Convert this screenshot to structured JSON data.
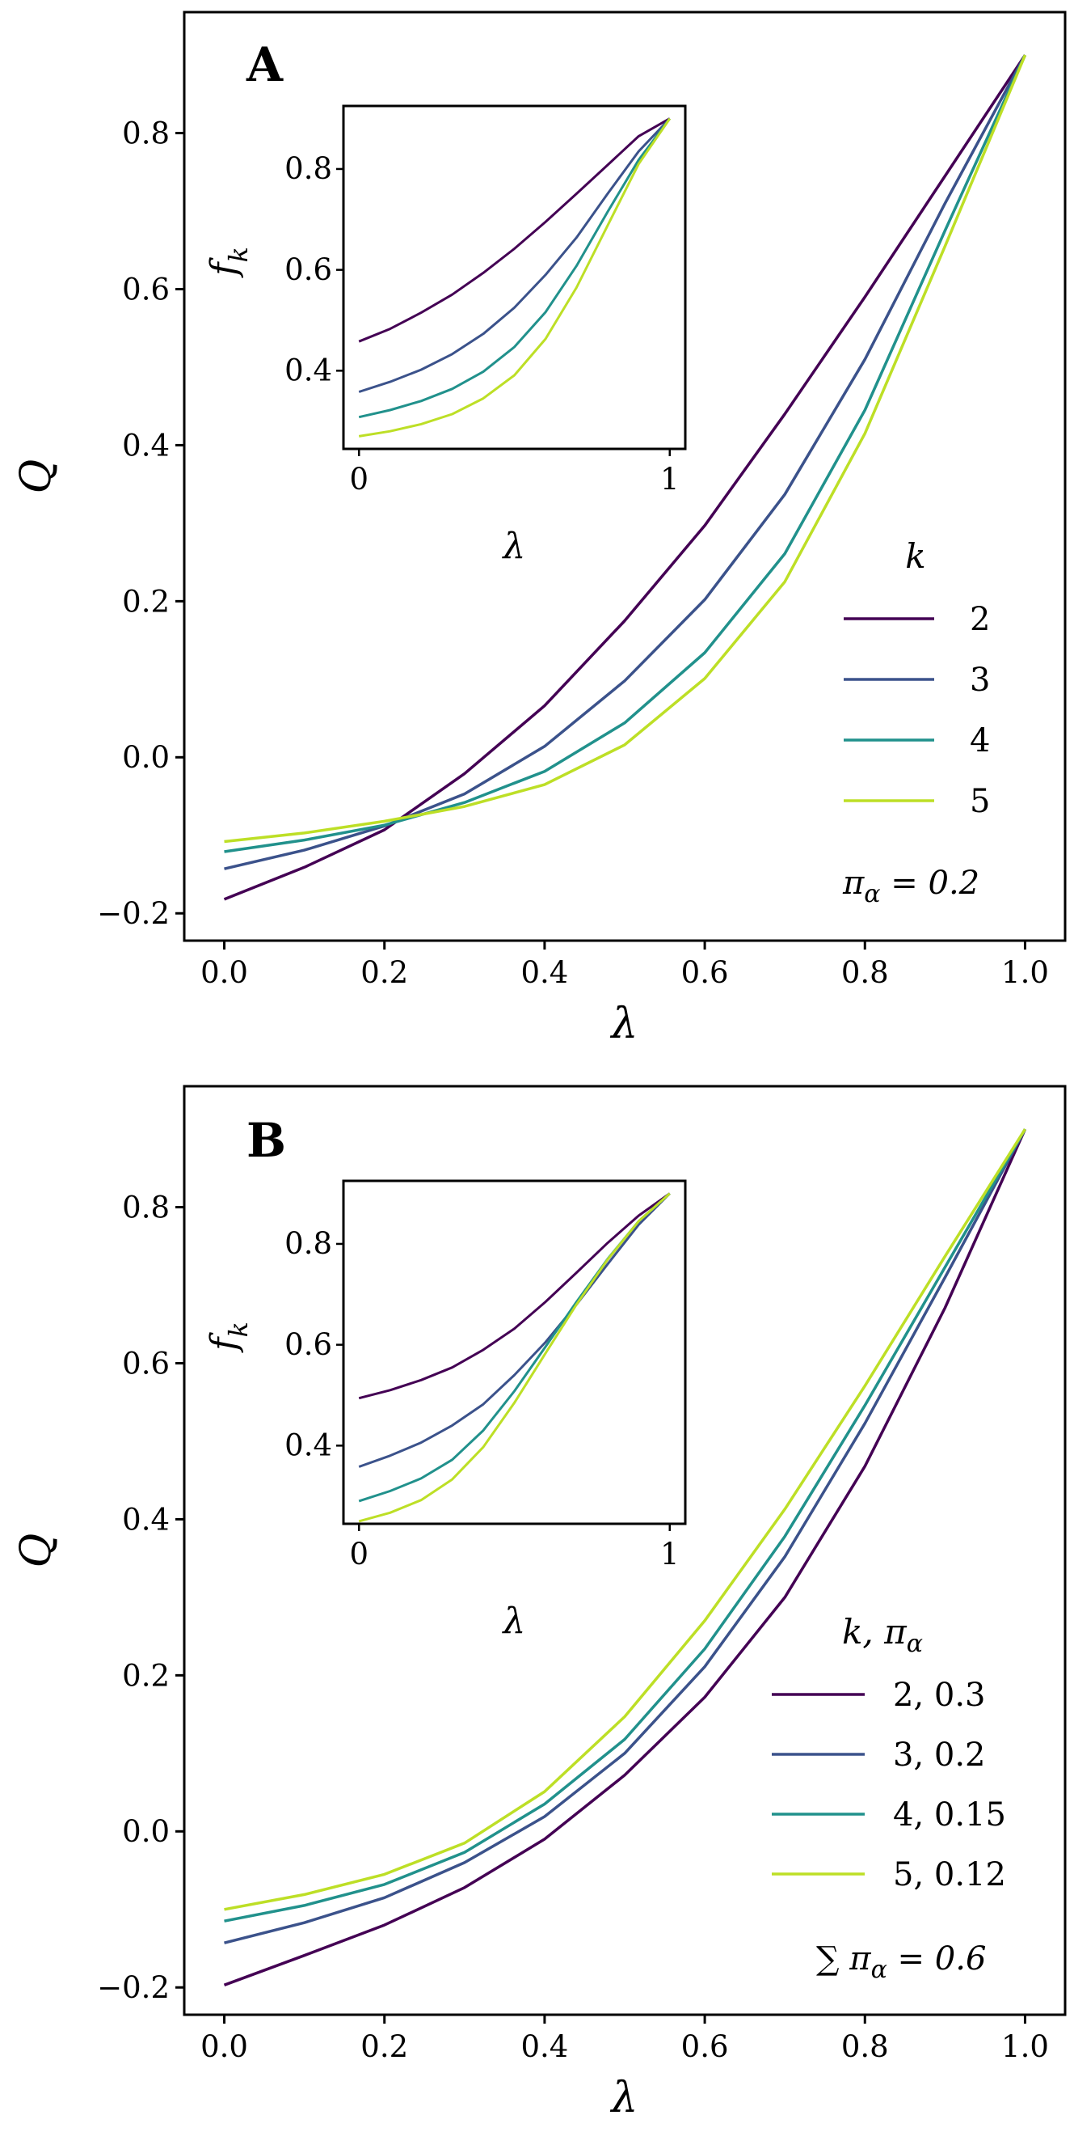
{
  "colors": {
    "k2": "#440154",
    "k3": "#3b528b",
    "k4": "#21918c",
    "k5": "#bddf26"
  },
  "chart_data": [
    {
      "panel": "A",
      "type": "line",
      "xlabel": "λ",
      "ylabel": "Q",
      "xlim": [
        -0.05,
        1.05
      ],
      "ylim": [
        -0.235,
        0.955
      ],
      "xticks": [
        "0.0",
        "0.2",
        "0.4",
        "0.6",
        "0.8",
        "1.0"
      ],
      "yticks": [
        "−0.2",
        "0.0",
        "0.2",
        "0.4",
        "0.6",
        "0.8"
      ],
      "x": [
        0.0,
        0.1,
        0.2,
        0.3,
        0.4,
        0.5,
        0.6,
        0.7,
        0.8,
        0.9,
        1.0
      ],
      "legend_title": "k",
      "legend_position": "lower-right",
      "annotation": "π_α = 0.2",
      "series": [
        {
          "name": "2",
          "color_key": "k2",
          "values": [
            -0.182,
            -0.141,
            -0.093,
            -0.021,
            0.066,
            0.175,
            0.297,
            0.44,
            0.59,
            0.745,
            0.9
          ]
        },
        {
          "name": "3",
          "color_key": "k3",
          "values": [
            -0.143,
            -0.119,
            -0.088,
            -0.047,
            0.014,
            0.098,
            0.202,
            0.337,
            0.51,
            0.71,
            0.9
          ]
        },
        {
          "name": "4",
          "color_key": "k4",
          "values": [
            -0.121,
            -0.106,
            -0.087,
            -0.058,
            -0.018,
            0.044,
            0.134,
            0.261,
            0.445,
            0.675,
            0.9
          ]
        },
        {
          "name": "5",
          "color_key": "k5",
          "values": [
            -0.108,
            -0.097,
            -0.082,
            -0.063,
            -0.035,
            0.016,
            0.101,
            0.225,
            0.415,
            0.655,
            0.9
          ]
        }
      ],
      "inset": {
        "xlabel": "λ",
        "ylabel": "f_k",
        "xlim": [
          -0.05,
          1.05
        ],
        "ylim": [
          0.245,
          0.925
        ],
        "xticks": [
          "0",
          "1"
        ],
        "yticks": [
          "0.4",
          "0.6",
          "0.8"
        ],
        "x": [
          0.0,
          0.1,
          0.2,
          0.3,
          0.4,
          0.5,
          0.6,
          0.7,
          0.8,
          0.9,
          1.0
        ],
        "series": [
          {
            "name": "2",
            "color_key": "k2",
            "values": [
              0.458,
              0.483,
              0.515,
              0.551,
              0.594,
              0.642,
              0.695,
              0.751,
              0.808,
              0.865,
              0.9
            ]
          },
          {
            "name": "3",
            "color_key": "k3",
            "values": [
              0.358,
              0.378,
              0.402,
              0.433,
              0.473,
              0.525,
              0.59,
              0.664,
              0.751,
              0.835,
              0.9
            ]
          },
          {
            "name": "4",
            "color_key": "k4",
            "values": [
              0.308,
              0.322,
              0.34,
              0.364,
              0.398,
              0.447,
              0.516,
              0.608,
              0.715,
              0.818,
              0.9
            ]
          },
          {
            "name": "5",
            "color_key": "k5",
            "values": [
              0.27,
              0.28,
              0.294,
              0.314,
              0.345,
              0.391,
              0.463,
              0.565,
              0.688,
              0.81,
              0.9
            ]
          }
        ]
      }
    },
    {
      "panel": "B",
      "type": "line",
      "xlabel": "λ",
      "ylabel": "Q",
      "xlim": [
        -0.05,
        1.05
      ],
      "ylim": [
        -0.235,
        0.955
      ],
      "xticks": [
        "0.0",
        "0.2",
        "0.4",
        "0.6",
        "0.8",
        "1.0"
      ],
      "yticks": [
        "−0.2",
        "0.0",
        "0.2",
        "0.4",
        "0.6",
        "0.8"
      ],
      "x": [
        0.0,
        0.1,
        0.2,
        0.3,
        0.4,
        0.5,
        0.6,
        0.7,
        0.8,
        0.9,
        1.0
      ],
      "legend_title": "k,  π_α",
      "legend_position": "lower-right",
      "annotation": "∑ π_α = 0.6",
      "series": [
        {
          "name": "2,  0.3",
          "color_key": "k2",
          "values": [
            -0.197,
            -0.159,
            -0.12,
            -0.072,
            -0.01,
            0.072,
            0.172,
            0.3,
            0.468,
            0.671,
            0.9
          ]
        },
        {
          "name": "3,  0.2",
          "color_key": "k3",
          "values": [
            -0.143,
            -0.117,
            -0.085,
            -0.04,
            0.019,
            0.1,
            0.211,
            0.352,
            0.523,
            0.71,
            0.9
          ]
        },
        {
          "name": "4,  0.15",
          "color_key": "k4",
          "values": [
            -0.115,
            -0.095,
            -0.068,
            -0.027,
            0.035,
            0.118,
            0.234,
            0.378,
            0.546,
            0.723,
            0.9
          ]
        },
        {
          "name": "5,  0.12",
          "color_key": "k5",
          "values": [
            -0.1,
            -0.081,
            -0.055,
            -0.015,
            0.051,
            0.147,
            0.27,
            0.413,
            0.571,
            0.737,
            0.9
          ]
        }
      ],
      "inset": {
        "xlabel": "λ",
        "ylabel": "f_k",
        "xlim": [
          -0.05,
          1.05
        ],
        "ylim": [
          0.245,
          0.925
        ],
        "xticks": [
          "0",
          "1"
        ],
        "yticks": [
          "0.4",
          "0.6",
          "0.8"
        ],
        "x": [
          0.0,
          0.1,
          0.2,
          0.3,
          0.4,
          0.5,
          0.6,
          0.7,
          0.8,
          0.9,
          1.0
        ],
        "series": [
          {
            "name": "2",
            "color_key": "k2",
            "values": [
              0.494,
              0.51,
              0.53,
              0.555,
              0.59,
              0.632,
              0.685,
              0.743,
              0.802,
              0.856,
              0.9
            ]
          },
          {
            "name": "3",
            "color_key": "k3",
            "values": [
              0.358,
              0.38,
              0.406,
              0.44,
              0.482,
              0.54,
              0.605,
              0.68,
              0.76,
              0.838,
              0.9
            ]
          },
          {
            "name": "4",
            "color_key": "k4",
            "values": [
              0.29,
              0.31,
              0.335,
              0.372,
              0.43,
              0.508,
              0.596,
              0.685,
              0.77,
              0.845,
              0.9
            ]
          },
          {
            "name": "5",
            "color_key": "k5",
            "values": [
              0.25,
              0.267,
              0.292,
              0.333,
              0.397,
              0.485,
              0.583,
              0.68,
              0.769,
              0.845,
              0.9
            ]
          }
        ]
      }
    }
  ]
}
